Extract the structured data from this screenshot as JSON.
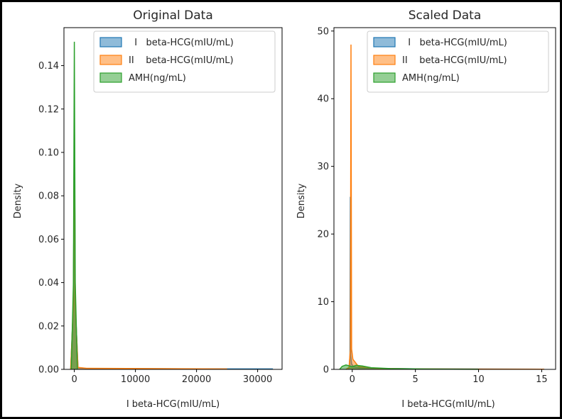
{
  "chart_data": [
    {
      "type": "area",
      "title": "Original Data",
      "xlabel": "I   beta-HCG(mIU/mL)",
      "ylabel": "Density",
      "xlim": [
        -1700,
        34000
      ],
      "ylim": [
        0,
        0.1575
      ],
      "xticks": [
        {
          "value": 0,
          "label": "0"
        },
        {
          "value": 10000,
          "label": "10000"
        },
        {
          "value": 20000,
          "label": "20000"
        },
        {
          "value": 30000,
          "label": "30000"
        }
      ],
      "yticks": [
        {
          "value": 0,
          "label": "0.00"
        },
        {
          "value": 0.02,
          "label": "0.02"
        },
        {
          "value": 0.04,
          "label": "0.04"
        },
        {
          "value": 0.06,
          "label": "0.06"
        },
        {
          "value": 0.08,
          "label": "0.08"
        },
        {
          "value": 0.1,
          "label": "0.10"
        },
        {
          "value": 0.12,
          "label": "0.12"
        },
        {
          "value": 0.14,
          "label": "0.14"
        }
      ],
      "grid": false,
      "legend": "top-right",
      "series": [
        {
          "name": "  I   beta-HCG(mIU/mL)",
          "color": "#1f77b4",
          "x": [
            -600,
            -150,
            0,
            150,
            600,
            2000,
            25000,
            32500
          ],
          "y": [
            0,
            0.03,
            0.119,
            0.03,
            0.0008,
            0.0004,
            0.0002,
            0.0002
          ]
        },
        {
          "name": "II    beta-HCG(mIU/mL)",
          "color": "#ff7f0e",
          "x": [
            -600,
            -150,
            0,
            150,
            600,
            2000,
            25000
          ],
          "y": [
            0,
            0.03,
            0.119,
            0.03,
            0.0009,
            0.0005,
            0.0002
          ]
        },
        {
          "name": "AMH(ng/mL)",
          "color": "#2ca02c",
          "x": [
            -500,
            -150,
            0,
            150,
            500
          ],
          "y": [
            0,
            0.04,
            0.151,
            0.04,
            0
          ]
        }
      ]
    },
    {
      "type": "area",
      "title": "Scaled Data",
      "xlabel": "I   beta-HCG(mIU/mL)",
      "ylabel": "Density",
      "xlim": [
        -1.45,
        16.1
      ],
      "ylim": [
        0,
        50.5
      ],
      "xticks": [
        {
          "value": 0,
          "label": "0"
        },
        {
          "value": 5,
          "label": "5"
        },
        {
          "value": 10,
          "label": "10"
        },
        {
          "value": 15,
          "label": "15"
        }
      ],
      "yticks": [
        {
          "value": 0,
          "label": "0"
        },
        {
          "value": 10,
          "label": "10"
        },
        {
          "value": 20,
          "label": "20"
        },
        {
          "value": 30,
          "label": "30"
        },
        {
          "value": 40,
          "label": "40"
        },
        {
          "value": 50,
          "label": "50"
        }
      ],
      "grid": false,
      "legend": "top-right",
      "series": [
        {
          "name": "  I   beta-HCG(mIU/mL)",
          "color": "#1f77b4",
          "x": [
            -0.5,
            -0.25,
            -0.18,
            -0.15,
            -0.12,
            -0.05,
            0.1,
            0.5,
            2,
            5,
            10,
            15.2
          ],
          "y": [
            0,
            0.2,
            2,
            25.5,
            2,
            0.8,
            0.4,
            0.25,
            0.15,
            0.08,
            0.05,
            0.03
          ]
        },
        {
          "name": "II    beta-HCG(mIU/mL)",
          "color": "#ff7f0e",
          "x": [
            -0.5,
            -0.25,
            -0.15,
            -0.1,
            -0.05,
            0.05,
            0.5,
            2,
            5,
            10,
            15.2
          ],
          "y": [
            0,
            0.3,
            3,
            48,
            3,
            1.5,
            0.4,
            0.15,
            0.07,
            0.04,
            0.03
          ]
        },
        {
          "name": "AMH(ng/mL)",
          "color": "#2ca02c",
          "x": [
            -1,
            -0.8,
            -0.5,
            -0.3,
            0,
            0.3,
            0.8,
            1.5,
            3,
            6,
            10
          ],
          "y": [
            0,
            0.45,
            0.65,
            0.55,
            0.4,
            0.6,
            0.5,
            0.25,
            0.12,
            0.05,
            0.01
          ]
        }
      ]
    }
  ]
}
